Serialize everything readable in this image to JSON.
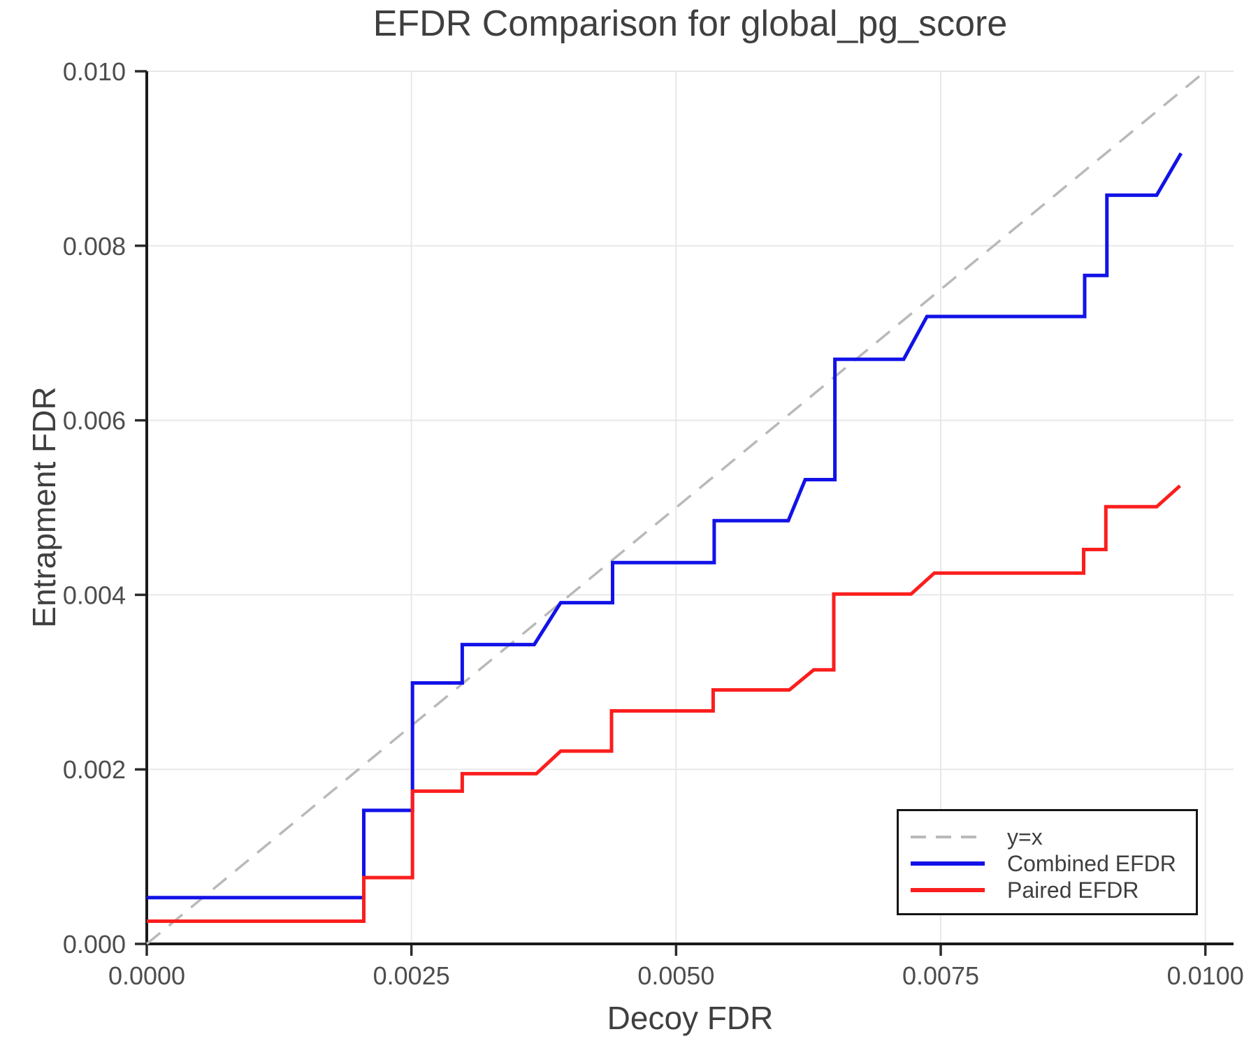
{
  "page": {
    "title": "EFDR Comparison for global_pg_score"
  },
  "chart_data": {
    "type": "line",
    "title": "EFDR Comparison for global_pg_score",
    "xlabel": "Decoy FDR",
    "ylabel": "Entrapment FDR",
    "xlim": [
      0,
      0.010266
    ],
    "ylim": [
      0,
      0.01
    ],
    "grid": true,
    "legend_position": "lower right",
    "axis_color": "#1a1a1a",
    "tick_color": "#2b2b2b",
    "grid_color": "#e8e8e8",
    "text_color": "#3f3f3f",
    "x_ticks": [
      0,
      0.0025,
      0.005,
      0.0075,
      0.01
    ],
    "x_tick_labels": [
      "0.0000",
      "0.0025",
      "0.0050",
      "0.0075",
      "0.0100"
    ],
    "y_ticks": [
      0,
      0.002,
      0.004,
      0.006,
      0.008,
      0.01
    ],
    "y_tick_labels": [
      "0.000",
      "0.002",
      "0.004",
      "0.006",
      "0.008",
      "0.010"
    ],
    "series": [
      {
        "name": "y=x",
        "color": "#b9b9b9",
        "dash": true,
        "width": 3.5,
        "points": [
          [
            0,
            0
          ],
          [
            0.01,
            0.01
          ]
        ]
      },
      {
        "name": "Combined EFDR",
        "color": "#1212e8",
        "dash": false,
        "width": 5,
        "points": [
          [
            0.0,
            0.00053
          ],
          [
            0.00205,
            0.00053
          ],
          [
            0.00205,
            0.00153
          ],
          [
            0.00251,
            0.00153
          ],
          [
            0.00251,
            0.00299
          ],
          [
            0.00298,
            0.00299
          ],
          [
            0.00298,
            0.00343
          ],
          [
            0.00366,
            0.00343
          ],
          [
            0.00391,
            0.00391
          ],
          [
            0.0044,
            0.00391
          ],
          [
            0.0044,
            0.00437
          ],
          [
            0.00536,
            0.00437
          ],
          [
            0.00536,
            0.00485
          ],
          [
            0.00606,
            0.00485
          ],
          [
            0.00622,
            0.00532
          ],
          [
            0.0065,
            0.00532
          ],
          [
            0.0065,
            0.0067
          ],
          [
            0.00715,
            0.0067
          ],
          [
            0.00737,
            0.00719
          ],
          [
            0.00886,
            0.00719
          ],
          [
            0.00886,
            0.00766
          ],
          [
            0.00907,
            0.00766
          ],
          [
            0.00907,
            0.00858
          ],
          [
            0.00954,
            0.00858
          ],
          [
            0.00977,
            0.00906
          ]
        ]
      },
      {
        "name": "Paired EFDR",
        "color": "#fb1e1e",
        "dash": false,
        "width": 5,
        "points": [
          [
            0.0,
            0.00026
          ],
          [
            0.00205,
            0.00026
          ],
          [
            0.00205,
            0.00076
          ],
          [
            0.00251,
            0.00076
          ],
          [
            0.00251,
            0.00175
          ],
          [
            0.00298,
            0.00175
          ],
          [
            0.00298,
            0.00195
          ],
          [
            0.00368,
            0.00195
          ],
          [
            0.00391,
            0.00221
          ],
          [
            0.00439,
            0.00221
          ],
          [
            0.00439,
            0.00267
          ],
          [
            0.00535,
            0.00267
          ],
          [
            0.00535,
            0.00291
          ],
          [
            0.00607,
            0.00291
          ],
          [
            0.0063,
            0.00314
          ],
          [
            0.00649,
            0.00314
          ],
          [
            0.00649,
            0.00401
          ],
          [
            0.00722,
            0.00401
          ],
          [
            0.00744,
            0.00425
          ],
          [
            0.00885,
            0.00425
          ],
          [
            0.00885,
            0.00452
          ],
          [
            0.00906,
            0.00452
          ],
          [
            0.00906,
            0.00501
          ],
          [
            0.00954,
            0.00501
          ],
          [
            0.00976,
            0.00525
          ]
        ]
      }
    ]
  }
}
